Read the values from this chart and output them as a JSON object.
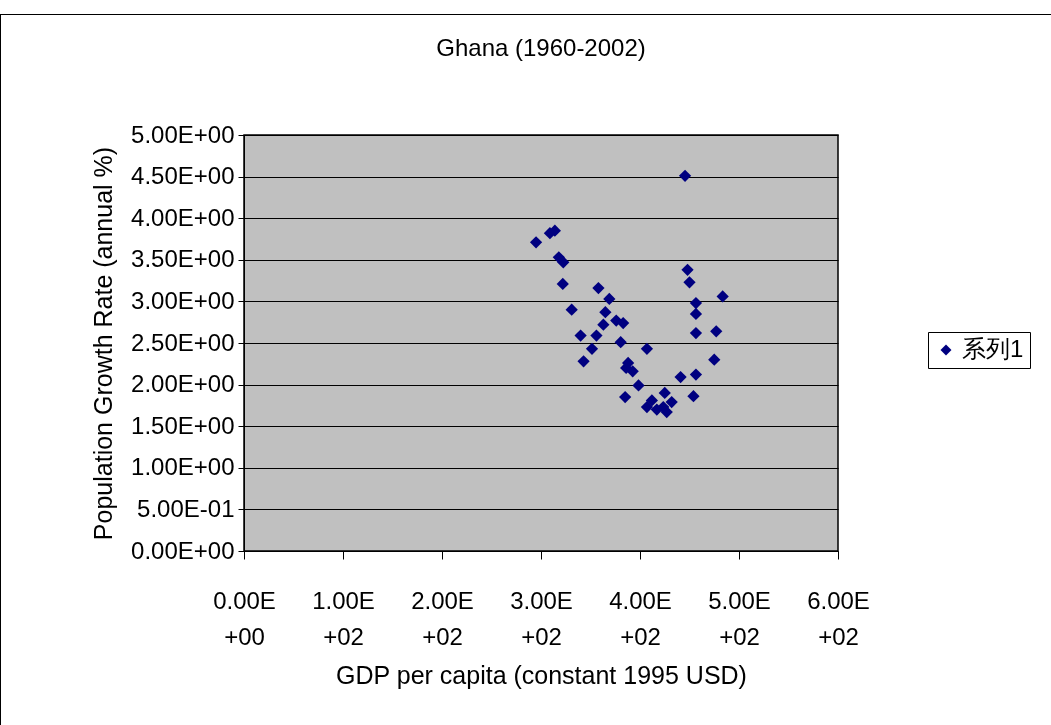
{
  "chart_data": {
    "type": "scatter",
    "title": "Ghana (1960-2002)",
    "xlabel": "GDP per capita (constant 1995 USD)",
    "ylabel": "Population Growth Rate (annual %)",
    "x": [
      445.5,
      295,
      309,
      314,
      318,
      322.5,
      322,
      331,
      358,
      369,
      365,
      363,
      376,
      383,
      340,
      356,
      351.5,
      343,
      380.5,
      407,
      388,
      386,
      392.6,
      398.5,
      385,
      412,
      407,
      417,
      425,
      432,
      427,
      423.5,
      441,
      448,
      450,
      456.5,
      456.5,
      456.5,
      456.5,
      454,
      477,
      475,
      483.5
    ],
    "series": [
      {
        "name": "系列1",
        "color": "#000080",
        "values": [
          4.51,
          3.71,
          3.82,
          3.85,
          3.53,
          3.47,
          3.21,
          2.9,
          3.16,
          3.03,
          2.87,
          2.72,
          2.77,
          2.74,
          2.59,
          2.59,
          2.43,
          2.28,
          2.51,
          2.43,
          2.26,
          2.2,
          2.16,
          1.99,
          1.85,
          1.81,
          1.73,
          1.7,
          1.9,
          1.79,
          1.67,
          1.73,
          2.09,
          3.38,
          3.23,
          2.98,
          2.85,
          2.62,
          2.12,
          1.86,
          2.64,
          2.3,
          3.06
        ]
      }
    ],
    "xlim": [
      0,
      600
    ],
    "ylim": [
      0,
      5
    ],
    "xticks": [
      {
        "value": 0,
        "label": "0.00E+00"
      },
      {
        "value": 100,
        "label": "1.00E+02"
      },
      {
        "value": 200,
        "label": "2.00E+02"
      },
      {
        "value": 300,
        "label": "3.00E+02"
      },
      {
        "value": 400,
        "label": "4.00E+02"
      },
      {
        "value": 500,
        "label": "5.00E+02"
      },
      {
        "value": 600,
        "label": "6.00E+02"
      }
    ],
    "yticks": [
      {
        "value": 0,
        "label": "0.00E+00"
      },
      {
        "value": 0.5,
        "label": "5.00E-01"
      },
      {
        "value": 1,
        "label": "1.00E+00"
      },
      {
        "value": 1.5,
        "label": "1.50E+00"
      },
      {
        "value": 2,
        "label": "2.00E+00"
      },
      {
        "value": 2.5,
        "label": "2.50E+00"
      },
      {
        "value": 3,
        "label": "3.00E+00"
      },
      {
        "value": 3.5,
        "label": "3.50E+00"
      },
      {
        "value": 4,
        "label": "4.00E+00"
      },
      {
        "value": 4.5,
        "label": "4.50E+00"
      },
      {
        "value": 5,
        "label": "5.00E+00"
      }
    ],
    "grid": "y",
    "legend": "right",
    "marker": "diamond"
  }
}
